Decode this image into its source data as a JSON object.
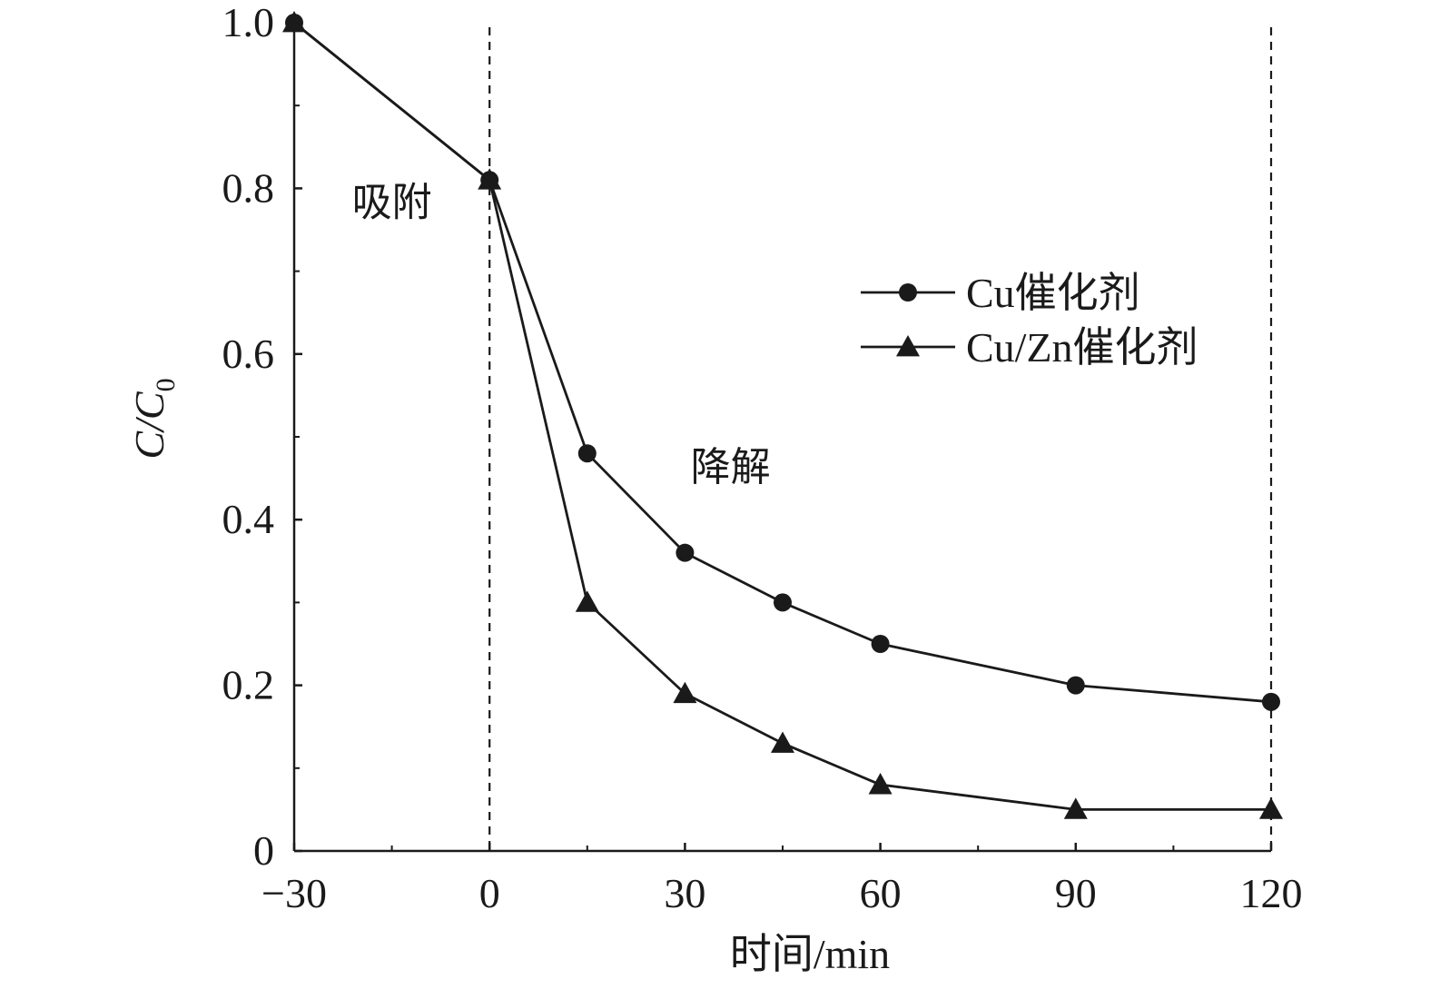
{
  "chart_data": {
    "type": "line",
    "xlabel": "时间/min",
    "ylabel": {
      "main": "C/C",
      "subscript": "0"
    },
    "xlim": [
      -30,
      120
    ],
    "ylim": [
      0,
      1.0
    ],
    "x_ticks": [
      -30,
      0,
      30,
      60,
      90,
      120
    ],
    "x_tick_labels": [
      "−30",
      "0",
      "30",
      "60",
      "90",
      "120"
    ],
    "y_ticks": [
      0,
      0.2,
      0.4,
      0.6,
      0.8,
      1.0
    ],
    "y_tick_labels": [
      "0",
      "0.2",
      "0.4",
      "0.6",
      "0.8",
      "1.0"
    ],
    "vlines": [
      0,
      120
    ],
    "annotations": [
      {
        "text": "吸附",
        "x": -15,
        "y": 0.8
      },
      {
        "text": "降解",
        "x": 37,
        "y": 0.48
      }
    ],
    "legend_position": "upper-right",
    "series": [
      {
        "name": "Cu催化剂",
        "marker": "circle",
        "x": [
          -30,
          0,
          15,
          30,
          45,
          60,
          90,
          120
        ],
        "y": [
          1.0,
          0.81,
          0.48,
          0.36,
          0.3,
          0.25,
          0.2,
          0.18
        ]
      },
      {
        "name": "Cu/Zn催化剂",
        "marker": "triangle",
        "x": [
          -30,
          0,
          15,
          30,
          45,
          60,
          90,
          120
        ],
        "y": [
          1.0,
          0.81,
          0.3,
          0.19,
          0.13,
          0.08,
          0.05,
          0.05
        ]
      }
    ],
    "grid": false
  }
}
